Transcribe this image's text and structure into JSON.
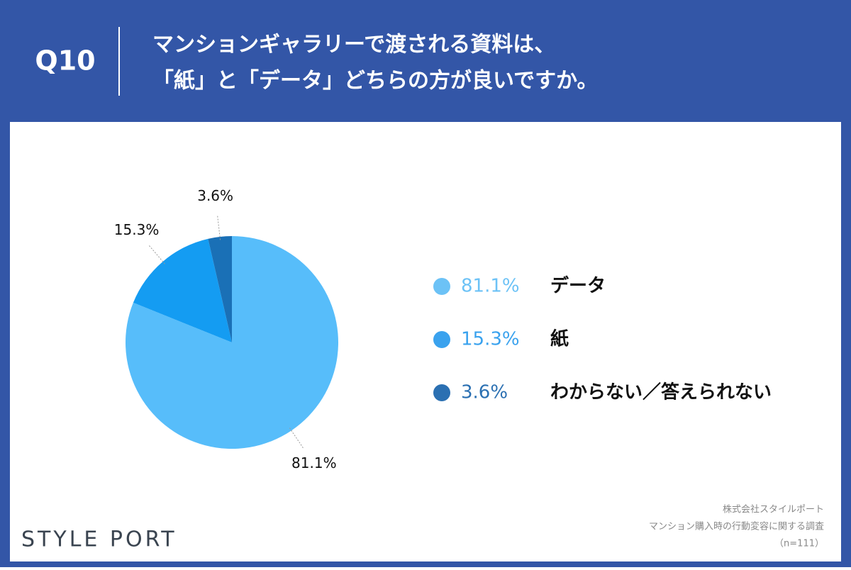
{
  "header": {
    "question": "Q10",
    "title_lines": [
      "マンションギャラリーで渡される資料は、",
      "「紙」と「データ」どちらの方が良いですか。"
    ]
  },
  "chart_data": {
    "type": "pie",
    "categories": [
      "データ",
      "紙",
      "わからない／答えられない"
    ],
    "values": [
      81.1,
      15.3,
      3.6
    ],
    "value_labels": [
      "81.1%",
      "15.3%",
      "3.6%"
    ],
    "colors": [
      "#57bdfa",
      "#149cf2",
      "#1a70b6"
    ],
    "legend_colors": [
      "#6cc2f6",
      "#3aa2ee",
      "#2b70b2"
    ]
  },
  "footer": {
    "logo": "STYLE PORT",
    "source_lines": [
      "株式会社スタイルポート",
      "マンション購入時の行動変容に関する調査",
      "（n=111）"
    ]
  }
}
